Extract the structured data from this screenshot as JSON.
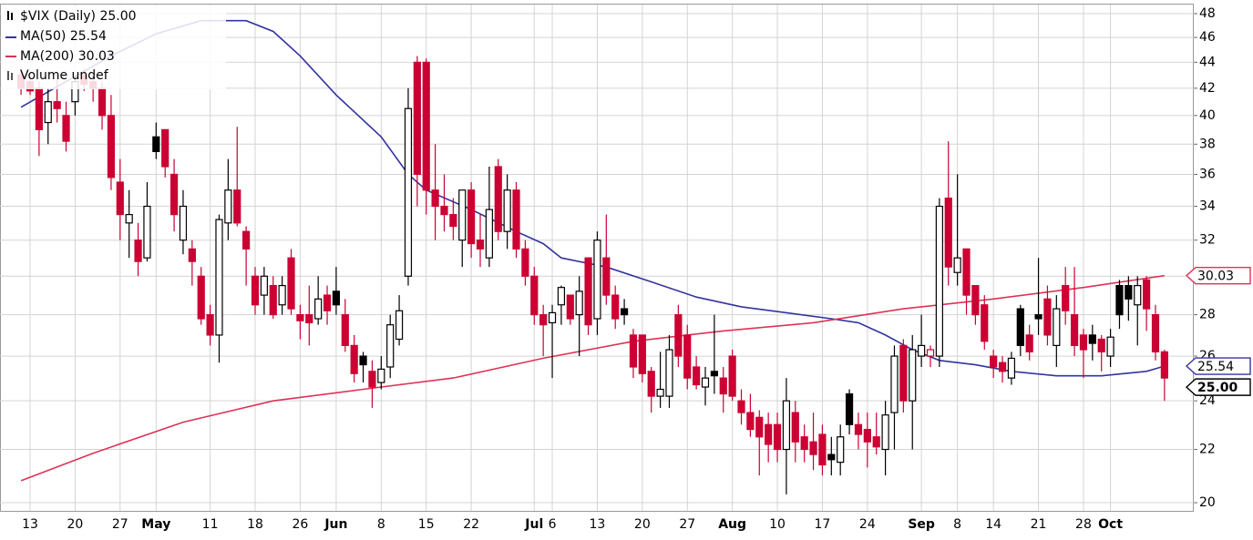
{
  "chart_data": {
    "type": "candlestick",
    "title": "$VIX (Daily) 25.00",
    "volume_label": "Volume undef",
    "up_color": "#000000",
    "down_color": "#cc0033",
    "log_y": true,
    "grid": true,
    "ylim": [
      20,
      48
    ],
    "yticks": [
      20,
      22,
      24,
      26,
      28,
      30,
      32,
      34,
      36,
      38,
      40,
      42,
      44,
      46,
      48
    ],
    "xticks": [
      {
        "value": 1,
        "label": "13"
      },
      {
        "value": 6,
        "label": "20"
      },
      {
        "value": 11,
        "label": "27"
      },
      {
        "value": 15,
        "label": "May"
      },
      {
        "value": 21,
        "label": "11"
      },
      {
        "value": 26,
        "label": "18"
      },
      {
        "value": 31,
        "label": "26"
      },
      {
        "value": 35,
        "label": "Jun"
      },
      {
        "value": 40,
        "label": "8"
      },
      {
        "value": 45,
        "label": "15"
      },
      {
        "value": 50,
        "label": "22"
      },
      {
        "value": 57,
        "label": "Jul"
      },
      {
        "value": 59,
        "label": "6"
      },
      {
        "value": 64,
        "label": "13"
      },
      {
        "value": 69,
        "label": "20"
      },
      {
        "value": 74,
        "label": "27"
      },
      {
        "value": 79,
        "label": "Aug"
      },
      {
        "value": 84,
        "label": "10"
      },
      {
        "value": 89,
        "label": "17"
      },
      {
        "value": 94,
        "label": "24"
      },
      {
        "value": 100,
        "label": "Sep"
      },
      {
        "value": 104,
        "label": "8"
      },
      {
        "value": 108,
        "label": "14"
      },
      {
        "value": 113,
        "label": "21"
      },
      {
        "value": 118,
        "label": "28"
      },
      {
        "value": 121,
        "label": "Oct"
      }
    ],
    "last_value": {
      "value": 25,
      "label": "25.00"
    },
    "ohlc": [
      [
        43,
        43.5,
        41.5,
        42
      ],
      [
        42.5,
        43,
        41.5,
        41.8
      ],
      [
        42,
        42.5,
        37.2,
        39
      ],
      [
        39.5,
        42,
        38,
        41
      ],
      [
        41,
        43,
        39.5,
        40.5
      ],
      [
        40,
        41,
        37.5,
        38.2
      ],
      [
        41,
        43,
        40,
        42.5
      ],
      [
        43,
        43.5,
        41.8,
        42.3
      ],
      [
        42.5,
        43,
        41,
        42
      ],
      [
        42,
        42.5,
        39,
        40
      ],
      [
        40,
        41.5,
        35,
        35.8
      ],
      [
        35.5,
        37,
        32,
        33.5
      ],
      [
        33,
        35,
        31,
        33.5
      ],
      [
        32,
        33,
        30,
        30.8
      ],
      [
        31,
        35.5,
        30.8,
        34
      ],
      [
        38.5,
        39.5,
        37,
        37.5
      ],
      [
        39,
        39,
        35.8,
        36.5
      ],
      [
        36,
        37,
        32.5,
        33.5
      ],
      [
        32,
        35,
        31.2,
        34
      ],
      [
        31.5,
        32,
        29.5,
        30.8
      ],
      [
        30,
        30.5,
        27.5,
        27.8
      ],
      [
        28,
        28.5,
        26.5,
        27
      ],
      [
        27,
        33.5,
        25.7,
        33.2
      ],
      [
        33,
        37,
        32,
        35
      ],
      [
        35,
        39.2,
        32.8,
        33
      ],
      [
        32.5,
        32.8,
        29.5,
        31.5
      ],
      [
        30,
        30.5,
        28,
        28.5
      ],
      [
        29,
        30.5,
        28,
        30
      ],
      [
        29.5,
        30,
        27.8,
        28
      ],
      [
        28.5,
        30,
        28,
        29.5
      ],
      [
        31,
        31.5,
        28,
        28.3
      ],
      [
        28,
        28.5,
        26.8,
        27.7
      ],
      [
        28,
        29.5,
        26.5,
        27.6
      ],
      [
        27.8,
        30,
        27.5,
        28.8
      ],
      [
        29,
        29.5,
        27.5,
        28.2
      ],
      [
        29.2,
        30.5,
        28,
        28.5
      ],
      [
        28,
        28.8,
        26.2,
        26.5
      ],
      [
        26.5,
        27,
        24.8,
        25.2
      ],
      [
        26,
        26.2,
        24.8,
        25.6
      ],
      [
        25.3,
        25.8,
        23.7,
        24.6
      ],
      [
        24.8,
        26,
        24.5,
        25.4
      ],
      [
        25.5,
        28,
        25,
        27.5
      ],
      [
        26.8,
        29,
        26.5,
        28.2
      ],
      [
        30,
        42,
        29.5,
        40.5
      ],
      [
        44,
        44.5,
        34,
        36
      ],
      [
        44,
        44.3,
        33.5,
        35
      ],
      [
        35,
        38,
        32,
        34
      ],
      [
        34,
        36,
        32.5,
        33.5
      ],
      [
        33.5,
        34.5,
        32,
        32.8
      ],
      [
        32,
        35,
        30.5,
        35
      ],
      [
        35,
        35.5,
        31,
        31.8
      ],
      [
        32,
        33.5,
        30.5,
        31.5
      ],
      [
        31,
        36.5,
        30.5,
        33.8
      ],
      [
        36.5,
        37,
        32,
        32.5
      ],
      [
        32.5,
        36,
        31.5,
        35
      ],
      [
        35,
        35.5,
        31,
        31.5
      ],
      [
        31.5,
        32,
        29.5,
        30
      ],
      [
        30,
        30.5,
        27.5,
        28
      ],
      [
        28,
        28.5,
        26,
        27.5
      ],
      [
        27.6,
        28.5,
        25,
        28.1
      ],
      [
        28.5,
        29.5,
        27.5,
        29.4
      ],
      [
        29,
        29,
        27.5,
        27.8
      ],
      [
        28,
        30,
        26,
        29.2
      ],
      [
        31,
        31,
        27,
        27.5
      ],
      [
        27.8,
        32.5,
        27,
        32
      ],
      [
        31,
        33.5,
        28.5,
        29
      ],
      [
        29,
        29.5,
        27.3,
        27.8
      ],
      [
        28.3,
        28.8,
        27.5,
        28
      ],
      [
        27,
        27.3,
        25,
        25.5
      ],
      [
        27,
        27,
        24.8,
        25.2
      ],
      [
        25.3,
        25.5,
        23.5,
        24.2
      ],
      [
        24.2,
        26.2,
        23.7,
        24.5
      ],
      [
        24.2,
        27,
        23.7,
        26.3
      ],
      [
        28,
        28.5,
        25.5,
        26
      ],
      [
        27,
        27.5,
        24.5,
        25
      ],
      [
        25.5,
        26,
        24.5,
        24.7
      ],
      [
        24.6,
        25.5,
        23.8,
        25
      ],
      [
        25.3,
        28,
        24.3,
        25.1
      ],
      [
        25,
        25.5,
        23.5,
        24.3
      ],
      [
        26,
        26.3,
        24,
        24.2
      ],
      [
        24,
        24.5,
        23,
        23.5
      ],
      [
        23.5,
        24.3,
        22.5,
        22.8
      ],
      [
        23.3,
        23.6,
        21,
        22.5
      ],
      [
        23,
        23.5,
        21.5,
        22.2
      ],
      [
        23,
        23.5,
        21.5,
        22
      ],
      [
        22,
        25,
        20.3,
        24
      ],
      [
        23.5,
        24,
        21.5,
        22.3
      ],
      [
        22.5,
        23,
        21.5,
        22
      ],
      [
        22.3,
        23.5,
        21.2,
        21.8
      ],
      [
        22.6,
        23,
        21,
        21.4
      ],
      [
        21.8,
        22.5,
        21,
        21.6
      ],
      [
        21.5,
        23,
        21,
        22.5
      ],
      [
        24.3,
        24.5,
        22.6,
        23
      ],
      [
        23,
        23.5,
        22,
        22.6
      ],
      [
        22.8,
        23.5,
        21.3,
        22.3
      ],
      [
        22.5,
        23.5,
        21.8,
        22.1
      ],
      [
        22,
        24,
        21,
        23.4
      ],
      [
        23.5,
        26.5,
        22,
        26
      ],
      [
        26.5,
        26.8,
        23.5,
        24
      ],
      [
        24,
        27,
        22,
        26.3
      ],
      [
        26,
        28,
        25.5,
        26.5
      ],
      [
        26,
        26.5,
        25.5,
        26.3
      ],
      [
        26,
        34.5,
        25.5,
        34
      ],
      [
        34.5,
        38.2,
        29.5,
        30.5
      ],
      [
        30.2,
        36,
        29.5,
        31
      ],
      [
        31.5,
        31.5,
        28,
        29
      ],
      [
        29.5,
        29.5,
        27.5,
        28
      ],
      [
        28.5,
        29,
        26.3,
        26.7
      ],
      [
        26,
        26.3,
        25,
        25.5
      ],
      [
        25.7,
        26,
        24.8,
        25.3
      ],
      [
        25,
        26.2,
        24.7,
        25.9
      ],
      [
        28.3,
        28.5,
        26,
        26.5
      ],
      [
        27,
        27.5,
        25.8,
        26.2
      ],
      [
        28,
        31,
        27,
        27.8
      ],
      [
        28.8,
        29.5,
        26.5,
        27
      ],
      [
        26.5,
        29,
        25.5,
        28.3
      ],
      [
        29.5,
        30.5,
        27.5,
        28.2
      ],
      [
        28,
        30.5,
        26,
        26.5
      ],
      [
        27,
        27.3,
        25,
        26.3
      ],
      [
        27,
        27.5,
        25.8,
        26.6
      ],
      [
        26.8,
        27,
        25.3,
        26.2
      ],
      [
        26,
        27.3,
        25.5,
        26.9
      ],
      [
        29.5,
        29.8,
        27.3,
        28
      ],
      [
        29.5,
        30,
        27.7,
        28.8
      ],
      [
        28.5,
        30,
        26.5,
        29.5
      ],
      [
        29.8,
        30,
        27.2,
        28.3
      ],
      [
        28,
        28.5,
        25.8,
        26.2
      ],
      [
        26.2,
        26.3,
        24,
        25
      ]
    ],
    "lines": [
      {
        "name": "MA(50) 25.54",
        "color": "#3333a0",
        "last_value": 25.54,
        "x": [
          0,
          5,
          10,
          15,
          20,
          25,
          28,
          31,
          35,
          40,
          43,
          45,
          50,
          55,
          58,
          60,
          65,
          70,
          75,
          80,
          85,
          90,
          93,
          96,
          99,
          102,
          106,
          110,
          115,
          120,
          125,
          127
        ],
        "values": [
          40.6,
          42.5,
          44.5,
          46.3,
          47.4,
          47.4,
          46.5,
          44.5,
          41.5,
          38.5,
          36,
          35,
          33.8,
          32.5,
          31.8,
          31,
          30.5,
          29.7,
          28.9,
          28.4,
          28.1,
          27.8,
          27.6,
          27,
          26.3,
          25.8,
          25.6,
          25.3,
          25.1,
          25.1,
          25.3,
          25.54
        ]
      },
      {
        "name": "MA(200) 30.03",
        "color": "#dd3355",
        "last_value": 30.03,
        "x": [
          0,
          8,
          18,
          28,
          38,
          48,
          58,
          68,
          78,
          88,
          98,
          108,
          118,
          127
        ],
        "values": [
          20.8,
          21.85,
          23.1,
          24,
          24.5,
          25,
          25.9,
          26.7,
          27.2,
          27.6,
          28.3,
          28.8,
          29.4,
          30.03
        ]
      }
    ]
  }
}
